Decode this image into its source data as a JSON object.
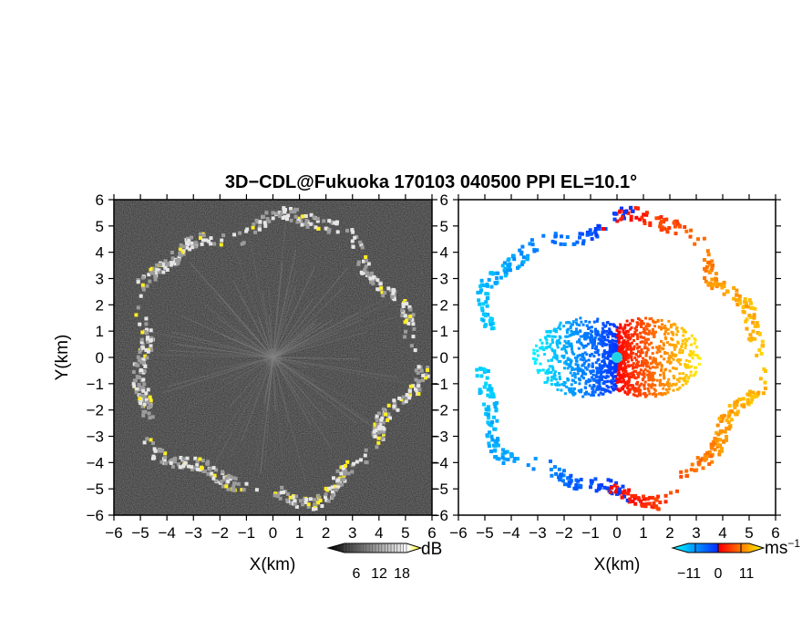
{
  "chart_data": {
    "title": "3D−CDL@Fukuoka 170103 040500 PPI EL=10.1°",
    "panels": [
      {
        "type": "heatmap",
        "quantity": "reflectivity",
        "xlabel": "X(km)",
        "ylabel": "Y(km)",
        "xlim": [
          -6,
          6
        ],
        "ylim": [
          -6,
          6
        ],
        "xticks": [
          "−6",
          "−5",
          "−4",
          "−3",
          "−2",
          "−1",
          "0",
          "1",
          "2",
          "3",
          "4",
          "5",
          "6"
        ],
        "yticks": [
          "6",
          "5",
          "4",
          "3",
          "2",
          "1",
          "0",
          "−1",
          "−2",
          "−3",
          "−4",
          "−5",
          "−6"
        ],
        "background": "#2a2a2a",
        "ring_radius_km": 5.2,
        "colorbar": {
          "unit": "dB",
          "ticks": [
            "6",
            "12",
            "18"
          ],
          "range": [
            0,
            21
          ],
          "colors": [
            "#000000",
            "#ffffff",
            "#ffff00"
          ]
        }
      },
      {
        "type": "heatmap",
        "quantity": "radial velocity",
        "xlabel": "X(km)",
        "xlim": [
          -6,
          6
        ],
        "ylim": [
          -6,
          6
        ],
        "xticks": [
          "−6",
          "−5",
          "−4",
          "−3",
          "−2",
          "−1",
          "0",
          "1",
          "2",
          "3",
          "4",
          "5",
          "6"
        ],
        "yticks": [
          "6",
          "5",
          "4",
          "3",
          "2",
          "1",
          "0",
          "−1",
          "−2",
          "−3",
          "−4",
          "−5",
          "−6"
        ],
        "background": "#ffffff",
        "ring_radius_km": 5.2,
        "center_marker_color": "#22d3e6",
        "colorbar": {
          "unit": "ms",
          "unit_exponent": "−1",
          "ticks": [
            "−11",
            "0",
            "11"
          ],
          "range": [
            -15,
            15
          ],
          "colors": [
            "#00ffff",
            "#0033ff",
            "#ff0000",
            "#ffff00"
          ]
        }
      }
    ]
  }
}
